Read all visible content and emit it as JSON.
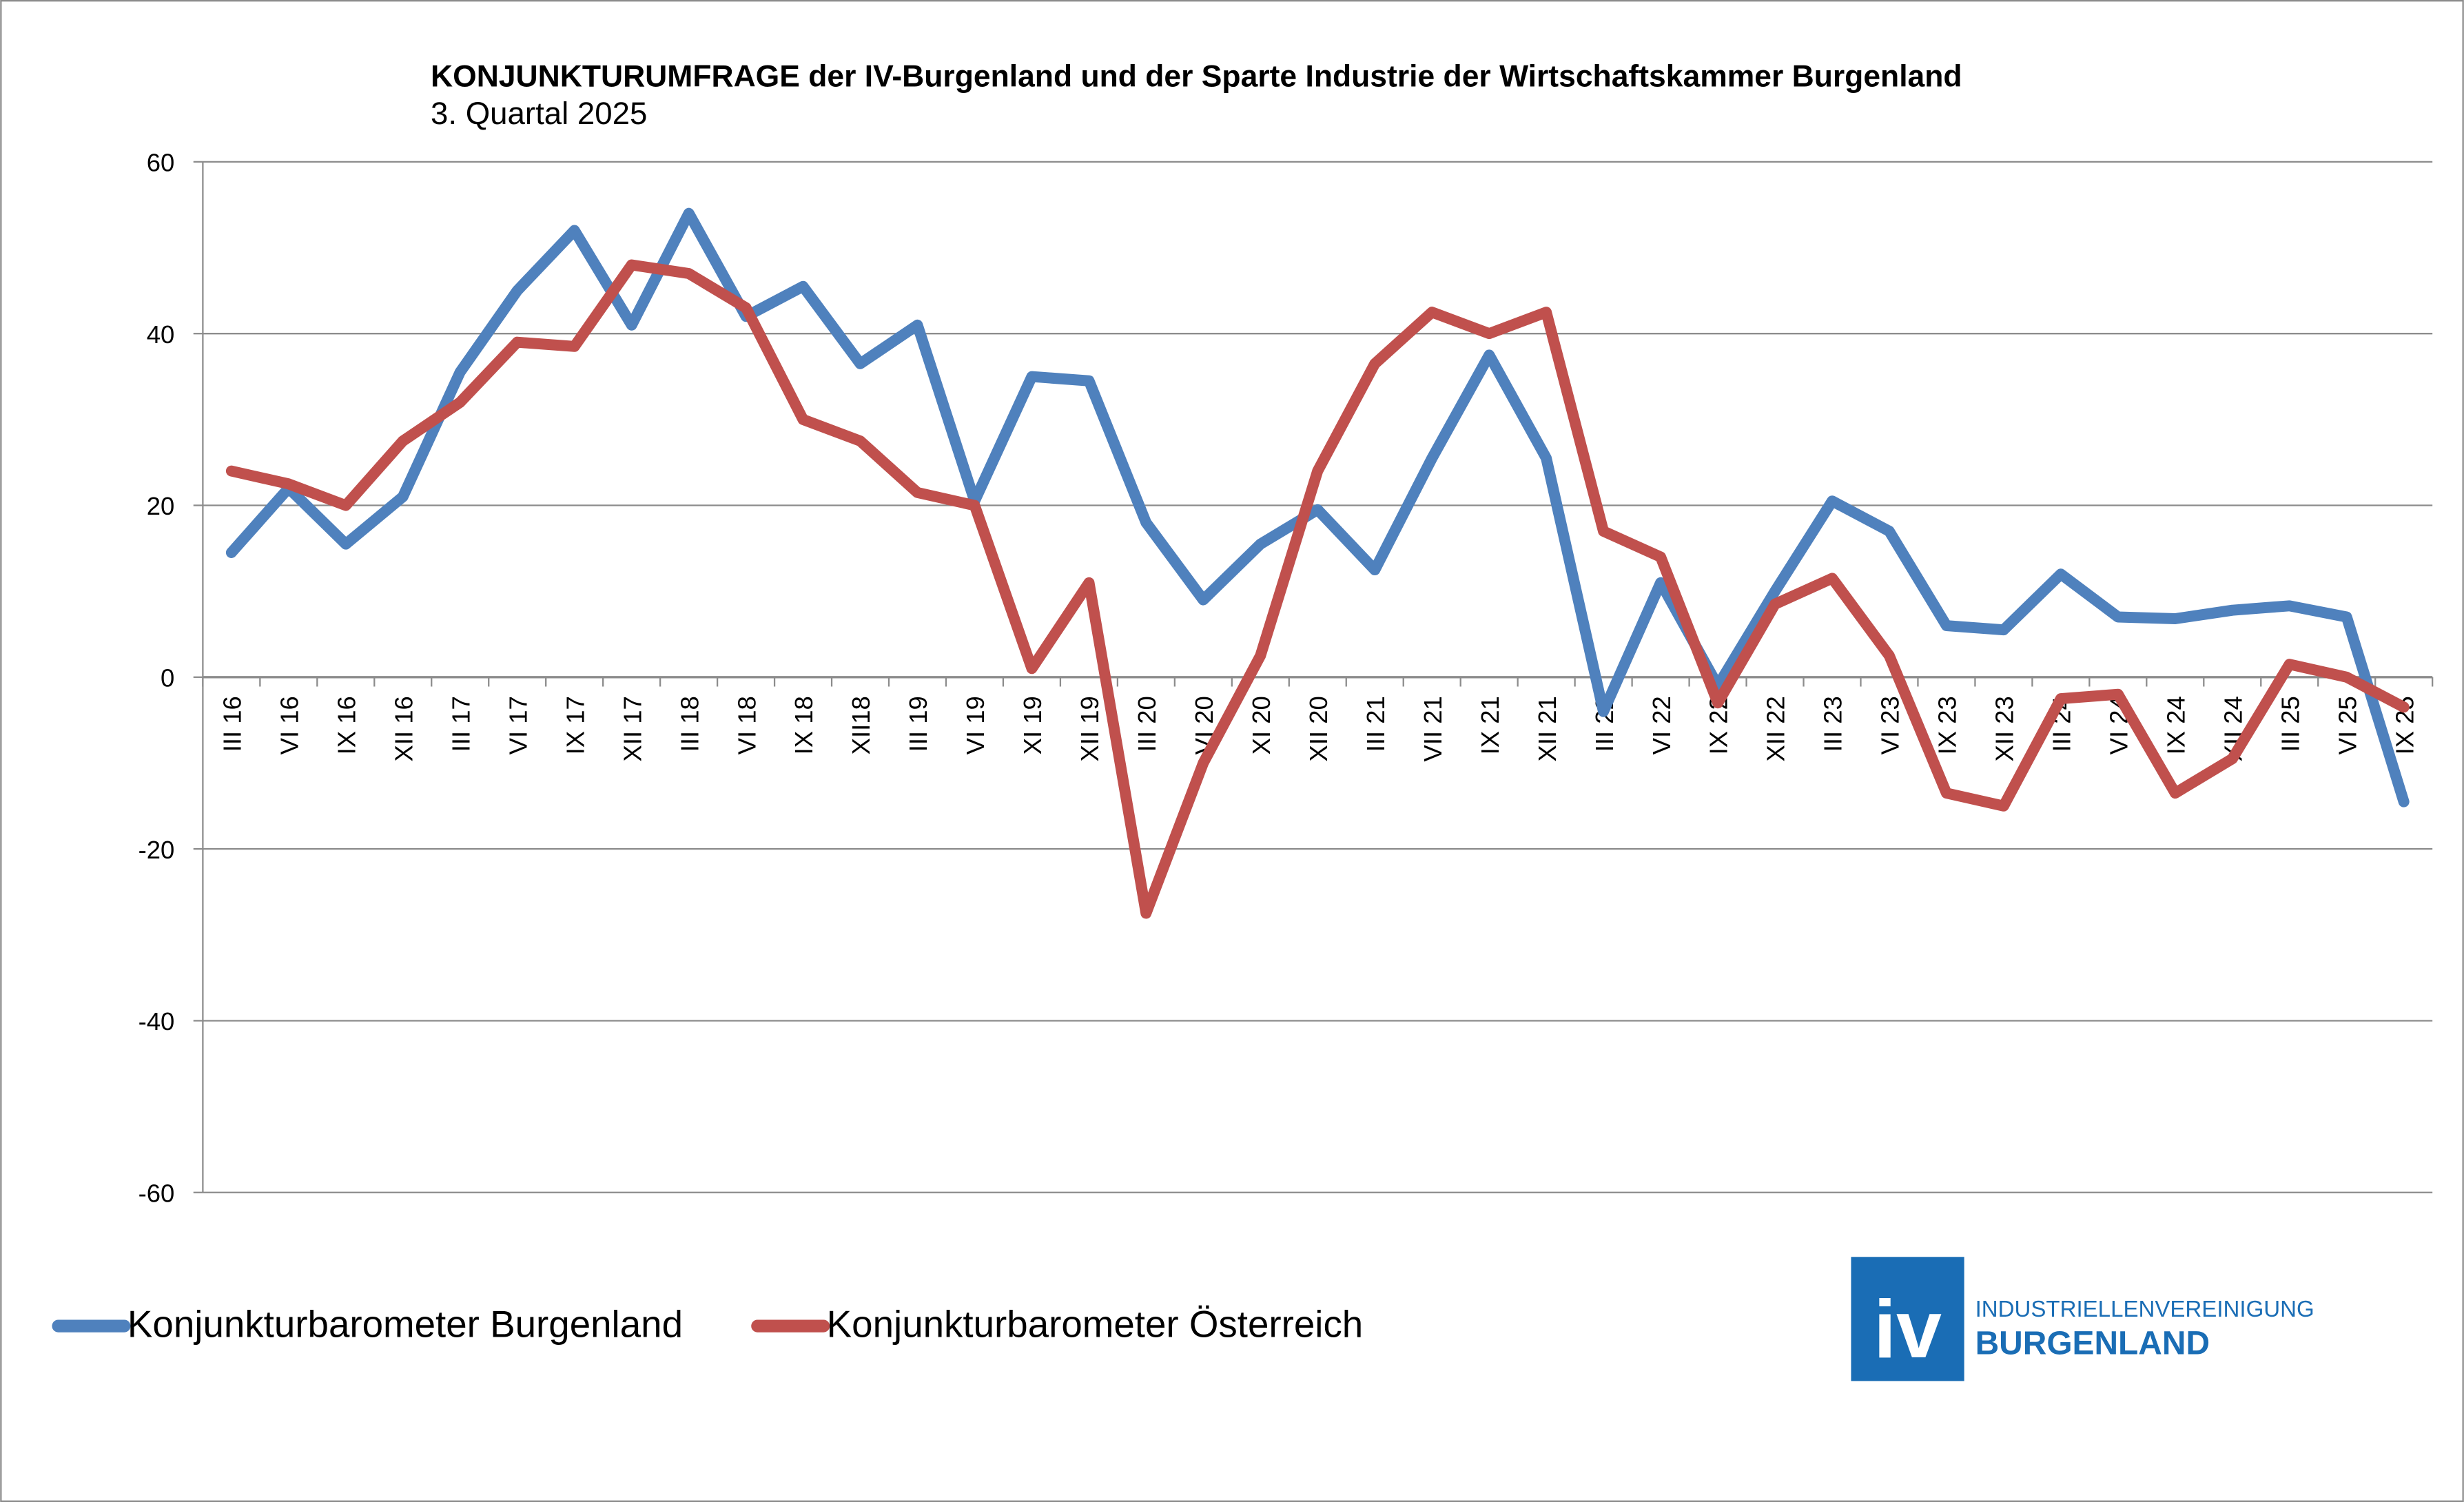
{
  "chart_data": {
    "type": "line",
    "title": "KONJUNKTURUMFRAGE der IV-Burgenland und der Sparte Industrie der Wirtschaftskammer Burgenland",
    "subtitle": "3. Quartal 2025",
    "xlabel": "",
    "ylabel": "",
    "ylim": [
      -60,
      60
    ],
    "yticks": [
      "60",
      "40",
      "20",
      "0",
      "-20",
      "-40",
      "-60"
    ],
    "grid": true,
    "legend_position": "bottom-left",
    "categories": [
      "III 16",
      "VI 16",
      "IX 16",
      "XII 16",
      "III 17",
      "VI 17",
      "IX 17",
      "XII 17",
      "III 18",
      "VI 18",
      "IX 18",
      "XII18",
      "III 19",
      "VI 19",
      "XI 19",
      "XII 19",
      "III 20",
      "VI 20",
      "XI 20",
      "XII 20",
      "III 21",
      "VII 21",
      "IX 21",
      "XII 21",
      "III 22",
      "VI 22",
      "IX 22",
      "XII 22",
      "III 23",
      "VI 23",
      "IX 23",
      "XII 23",
      "III 24",
      "VI 24",
      "IX 24",
      "XII 24",
      "III 25",
      "VI 25",
      "IX 25"
    ],
    "series": [
      {
        "name": "Konjunkturbarometer Burgenland",
        "color": "#4F81BD",
        "values": [
          14.5,
          22,
          15.5,
          21,
          35.5,
          45,
          52,
          41,
          54,
          42,
          45.5,
          36.5,
          41,
          20.5,
          35,
          34.5,
          18,
          9,
          15.5,
          19.5,
          12.5,
          25.5,
          37.5,
          25.5,
          -4,
          11,
          -1,
          10,
          20.5,
          17,
          6,
          5.5,
          12,
          7,
          6.8,
          7.8,
          8.3,
          7,
          -14.5
        ]
      },
      {
        "name": "Konjunkturbarometer Österreich",
        "color": "#C0504D",
        "values": [
          24,
          22.5,
          20,
          27.5,
          32,
          39,
          38.5,
          48,
          47,
          43,
          30,
          27.5,
          21.5,
          20,
          1,
          11,
          -27.5,
          -10,
          2.5,
          24,
          36.5,
          42.5,
          40,
          42.5,
          17,
          14,
          -3,
          8.5,
          11.5,
          2.5,
          -13.5,
          -15,
          -2.5,
          -2,
          -13.5,
          -9.5,
          1.5,
          0,
          -3.5
        ]
      }
    ]
  },
  "logo": {
    "mark": "iv",
    "line1": "INDUSTRIELLENVEREINIGUNG",
    "line2": "BURGENLAND",
    "color": "#1A6DB5"
  }
}
